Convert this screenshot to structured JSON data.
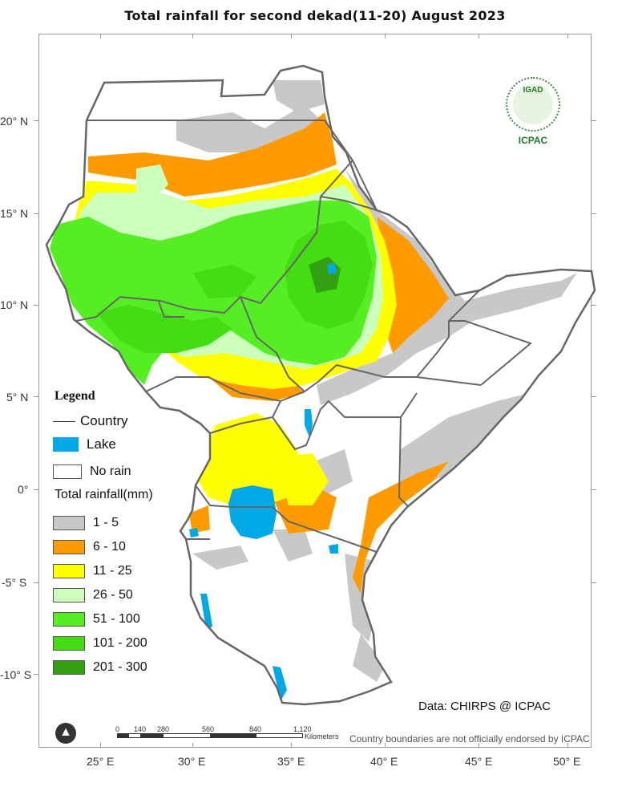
{
  "title": "Total rainfall  for  second dekad(11-20)  August  2023",
  "lat_labels": [
    "20° N",
    "15° N",
    "10° N",
    "5° N",
    "0°",
    "-5° S",
    "-10° S"
  ],
  "lon_labels": [
    "25° E",
    "30° E",
    "35° E",
    "40° E",
    "45° E",
    "50° E"
  ],
  "legend": {
    "title": "Legend",
    "country_label": "Country",
    "lake_label": "Lake",
    "no_rain_label": "No rain",
    "total_label": "Total rainfall(mm)",
    "classes": [
      {
        "label": "1 - 5",
        "color": "#c8c8c8"
      },
      {
        "label": "6 - 10",
        "color": "#ff9a00"
      },
      {
        "label": "11 - 25",
        "color": "#ffff00"
      },
      {
        "label": "26 - 50",
        "color": "#ccffbb"
      },
      {
        "label": "51 - 100",
        "color": "#55ee22"
      },
      {
        "label": "101 - 200",
        "color": "#44dd11"
      },
      {
        "label": "201 - 300",
        "color": "#33a011"
      }
    ],
    "lake_color": "#00a8e6",
    "no_rain_color": "#ffffff"
  },
  "logo": {
    "top_text": "IGAD",
    "bottom_text": "ICPAC"
  },
  "source": "Data: CHIRPS @ ICPAC",
  "disclaimer": "Country boundaries are not officially endorsed by ICPAC",
  "scalebar": {
    "ticks": [
      "0",
      "140",
      "280",
      "560",
      "840",
      "1,120"
    ],
    "unit": "Kilometers"
  },
  "north_arrow": "north-arrow-icon"
}
